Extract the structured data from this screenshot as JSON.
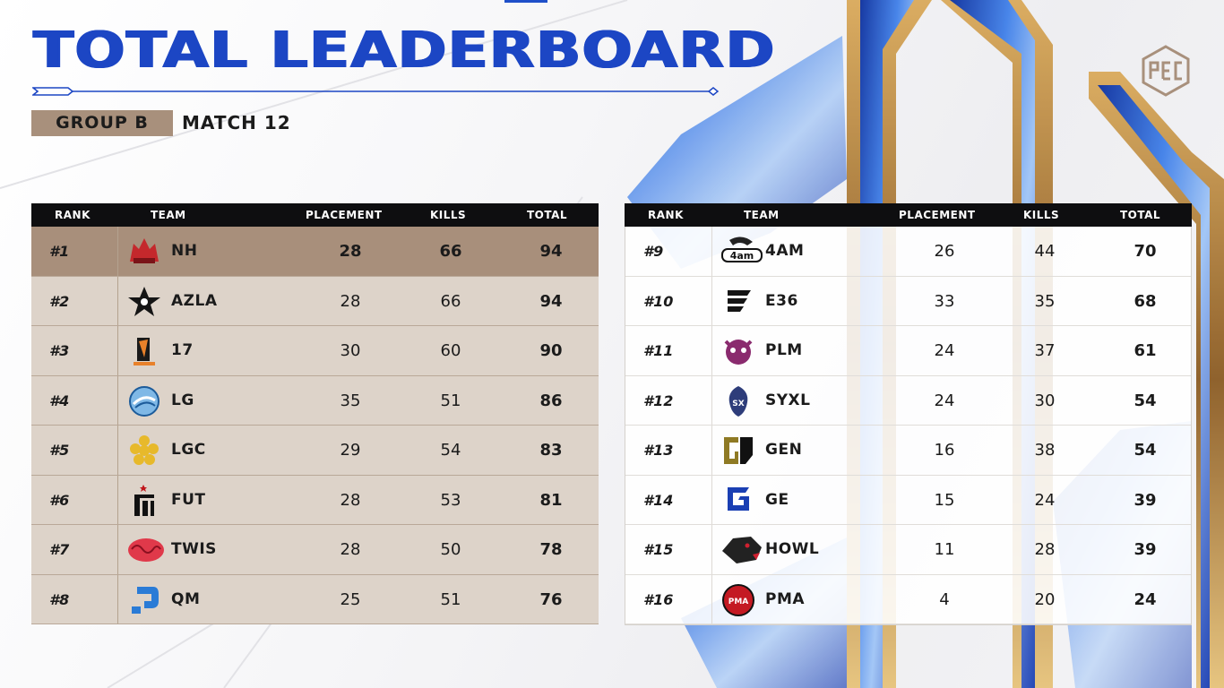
{
  "header": {
    "title": "TOTAL LEADERBOARD",
    "group": "GROUP B",
    "match": "MATCH 12",
    "logo_icon": "pgc-logo-icon"
  },
  "columns": {
    "rank": "RANK",
    "team": "TEAM",
    "placement": "PLACEMENT",
    "kills": "KILLS",
    "total": "TOTAL"
  },
  "colors": {
    "title_blue": "#1c46c4",
    "tag_tan": "#a8907c",
    "highlight_row": "#a88f7b",
    "left_row": "#ddd3c9",
    "header_black": "#0e0e10"
  },
  "left_board": [
    {
      "rank": "#1",
      "team": "NH",
      "placement": "28",
      "kills": "66",
      "total": "94",
      "icon": "nh-logo-icon"
    },
    {
      "rank": "#2",
      "team": "AZLA",
      "placement": "28",
      "kills": "66",
      "total": "94",
      "icon": "azla-logo-icon"
    },
    {
      "rank": "#3",
      "team": "17",
      "placement": "30",
      "kills": "60",
      "total": "90",
      "icon": "17-gaming-logo-icon"
    },
    {
      "rank": "#4",
      "team": "LG",
      "placement": "35",
      "kills": "51",
      "total": "86",
      "icon": "lg-logo-icon"
    },
    {
      "rank": "#5",
      "team": "LGC",
      "placement": "29",
      "kills": "54",
      "total": "83",
      "icon": "lgc-logo-icon"
    },
    {
      "rank": "#6",
      "team": "FUT",
      "placement": "28",
      "kills": "53",
      "total": "81",
      "icon": "fut-logo-icon"
    },
    {
      "rank": "#7",
      "team": "TWIS",
      "placement": "28",
      "kills": "50",
      "total": "78",
      "icon": "twis-logo-icon"
    },
    {
      "rank": "#8",
      "team": "QM",
      "placement": "25",
      "kills": "51",
      "total": "76",
      "icon": "qm-logo-icon"
    }
  ],
  "right_board": [
    {
      "rank": "#9",
      "team": "4AM",
      "placement": "26",
      "kills": "44",
      "total": "70",
      "icon": "4am-logo-icon"
    },
    {
      "rank": "#10",
      "team": "E36",
      "placement": "33",
      "kills": "35",
      "total": "68",
      "icon": "e36-logo-icon"
    },
    {
      "rank": "#11",
      "team": "PLM",
      "placement": "24",
      "kills": "37",
      "total": "61",
      "icon": "plm-logo-icon"
    },
    {
      "rank": "#12",
      "team": "SYXL",
      "placement": "24",
      "kills": "30",
      "total": "54",
      "icon": "syxl-logo-icon"
    },
    {
      "rank": "#13",
      "team": "GEN",
      "placement": "16",
      "kills": "38",
      "total": "54",
      "icon": "gen-logo-icon"
    },
    {
      "rank": "#14",
      "team": "GE",
      "placement": "15",
      "kills": "24",
      "total": "39",
      "icon": "ge-logo-icon"
    },
    {
      "rank": "#15",
      "team": "HOWL",
      "placement": "11",
      "kills": "28",
      "total": "39",
      "icon": "howl-logo-icon"
    },
    {
      "rank": "#16",
      "team": "PMA",
      "placement": "4",
      "kills": "20",
      "total": "24",
      "icon": "pma-logo-icon"
    }
  ]
}
